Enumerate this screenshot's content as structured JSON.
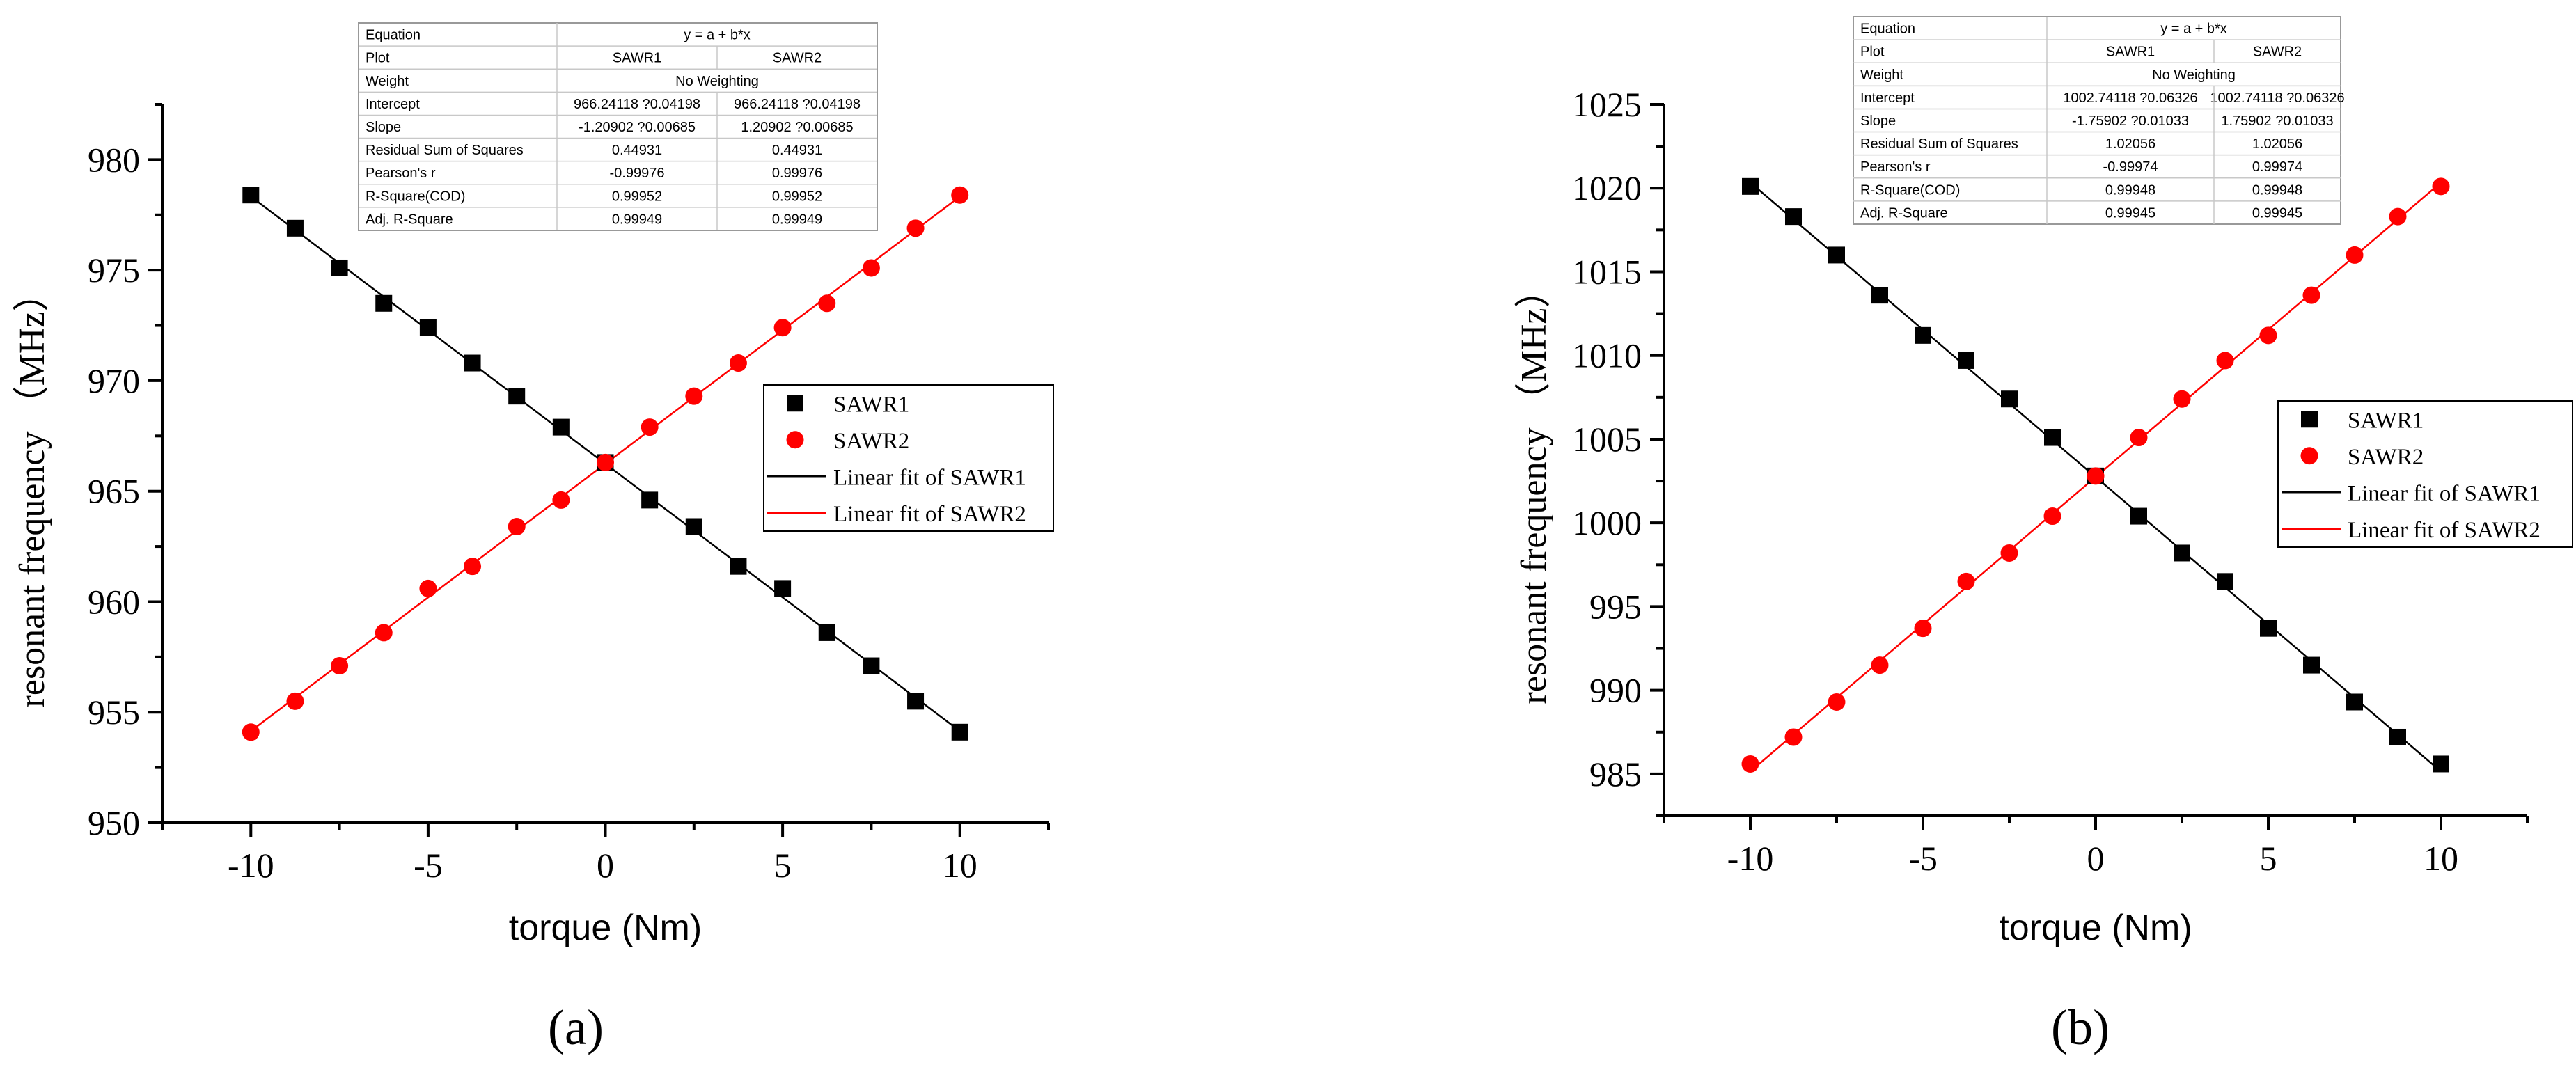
{
  "chart_data": [
    {
      "type": "scatter",
      "panel_label": "(a)",
      "xlabel": "torque (Nm)",
      "ylabel": "resonant frequency （MHz）",
      "xlim": [
        -12.5,
        12.5
      ],
      "ylim": [
        950,
        982.5
      ],
      "xticks": [
        -10,
        -5,
        0,
        5,
        10
      ],
      "yticks": [
        950,
        955,
        960,
        965,
        970,
        975,
        980
      ],
      "x": [
        -10,
        -8.75,
        -7.5,
        -6.25,
        -5,
        -3.75,
        -2.5,
        -1.25,
        0,
        1.25,
        2.5,
        3.75,
        5,
        6.25,
        7.5,
        8.75,
        10
      ],
      "series": [
        {
          "name": "SAWR1",
          "marker": "square",
          "color": "#000000",
          "values": [
            978.4,
            976.9,
            975.1,
            973.5,
            972.4,
            970.8,
            969.3,
            967.9,
            966.3,
            964.6,
            963.4,
            961.6,
            960.6,
            958.6,
            957.1,
            955.5,
            954.1
          ]
        },
        {
          "name": "SAWR2",
          "marker": "circle",
          "color": "#ff0000",
          "values": [
            954.1,
            955.5,
            957.1,
            958.6,
            960.6,
            961.6,
            963.4,
            964.6,
            966.3,
            967.9,
            969.3,
            970.8,
            972.4,
            973.5,
            975.1,
            976.9,
            978.4
          ]
        }
      ],
      "fits": [
        {
          "name": "Linear fit of SAWR1",
          "intercept": 966.24118,
          "slope": -1.20902,
          "color": "#000000"
        },
        {
          "name": "Linear fit of SAWR2",
          "intercept": 966.24118,
          "slope": 1.20902,
          "color": "#ff0000"
        }
      ],
      "legend_position": "right",
      "stats_table": {
        "rows": [
          [
            "Equation",
            "y = a + b*x",
            ""
          ],
          [
            "Plot",
            "SAWR1",
            "SAWR2"
          ],
          [
            "Weight",
            "No Weighting",
            ""
          ],
          [
            "Intercept",
            "966.24118 ?0.04198",
            "966.24118 ?0.04198"
          ],
          [
            "Slope",
            "-1.20902 ?0.00685",
            "1.20902 ?0.00685"
          ],
          [
            "Residual Sum of Squares",
            "0.44931",
            "0.44931"
          ],
          [
            "Pearson's r",
            "-0.99976",
            "0.99976"
          ],
          [
            "R-Square(COD)",
            "0.99952",
            "0.99952"
          ],
          [
            "Adj. R-Square",
            "0.99949",
            "0.99949"
          ]
        ]
      }
    },
    {
      "type": "scatter",
      "panel_label": "(b)",
      "xlabel": "torque (Nm)",
      "ylabel": "resonant frequency （MHz）",
      "xlim": [
        -12.5,
        12.5
      ],
      "ylim": [
        982.5,
        1025
      ],
      "xticks": [
        -10,
        -5,
        0,
        5,
        10
      ],
      "yticks": [
        985,
        990,
        995,
        1000,
        1005,
        1010,
        1015,
        1020,
        1025
      ],
      "x": [
        -10,
        -8.75,
        -7.5,
        -6.25,
        -5,
        -3.75,
        -2.5,
        -1.25,
        0,
        1.25,
        2.5,
        3.75,
        5,
        6.25,
        7.5,
        8.75,
        10
      ],
      "series": [
        {
          "name": "SAWR1",
          "marker": "square",
          "color": "#000000",
          "values": [
            1020.1,
            1018.3,
            1016.0,
            1013.6,
            1011.2,
            1009.7,
            1007.4,
            1005.1,
            1002.8,
            1000.4,
            998.2,
            996.5,
            993.7,
            991.5,
            989.3,
            987.2,
            985.6
          ]
        },
        {
          "name": "SAWR2",
          "marker": "circle",
          "color": "#ff0000",
          "values": [
            985.6,
            987.2,
            989.3,
            991.5,
            993.7,
            996.5,
            998.2,
            1000.4,
            1002.8,
            1005.1,
            1007.4,
            1009.7,
            1011.2,
            1013.6,
            1016.0,
            1018.3,
            1020.1
          ]
        }
      ],
      "fits": [
        {
          "name": "Linear fit of SAWR1",
          "intercept": 1002.74118,
          "slope": -1.75902,
          "color": "#000000"
        },
        {
          "name": "Linear fit of SAWR2",
          "intercept": 1002.74118,
          "slope": 1.75902,
          "color": "#ff0000"
        }
      ],
      "legend_position": "right",
      "stats_table": {
        "rows": [
          [
            "Equation",
            "y = a + b*x",
            ""
          ],
          [
            "Plot",
            "SAWR1",
            "SAWR2"
          ],
          [
            "Weight",
            "No Weighting",
            ""
          ],
          [
            "Intercept",
            "1002.74118 ?0.06326",
            "1002.74118 ?0.06326"
          ],
          [
            "Slope",
            "-1.75902 ?0.01033",
            "1.75902 ?0.01033"
          ],
          [
            "Residual Sum of Squares",
            "1.02056",
            "1.02056"
          ],
          [
            "Pearson's r",
            "-0.99974",
            "0.99974"
          ],
          [
            "R-Square(COD)",
            "0.99948",
            "0.99948"
          ],
          [
            "Adj. R-Square",
            "0.99945",
            "0.99945"
          ]
        ]
      }
    }
  ]
}
